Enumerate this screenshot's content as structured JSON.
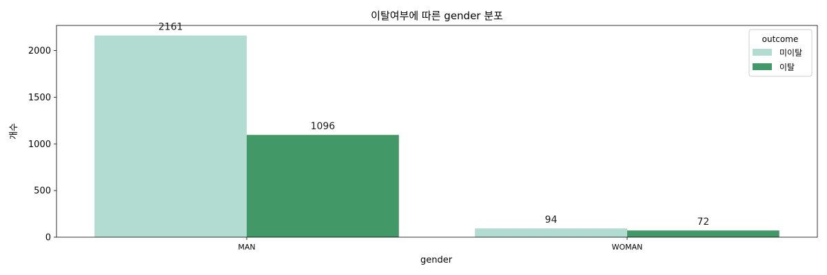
{
  "chart_data": {
    "type": "bar",
    "title": "이탈여부에 따른 gender 분포",
    "xlabel": "gender",
    "ylabel": "개수",
    "categories": [
      "MAN",
      "WOMAN"
    ],
    "series": [
      {
        "name": "미이탈",
        "values": [
          2161,
          94
        ],
        "color": "#b2dbd1"
      },
      {
        "name": "이탈",
        "values": [
          1096,
          72
        ],
        "color": "#429867"
      }
    ],
    "ylim": [
      0,
      2269
    ],
    "yticks": [
      0,
      500,
      1000,
      1500,
      2000
    ],
    "grid": false,
    "data_labels": true,
    "legend": {
      "title": "outcome",
      "placement": "top-right"
    }
  }
}
